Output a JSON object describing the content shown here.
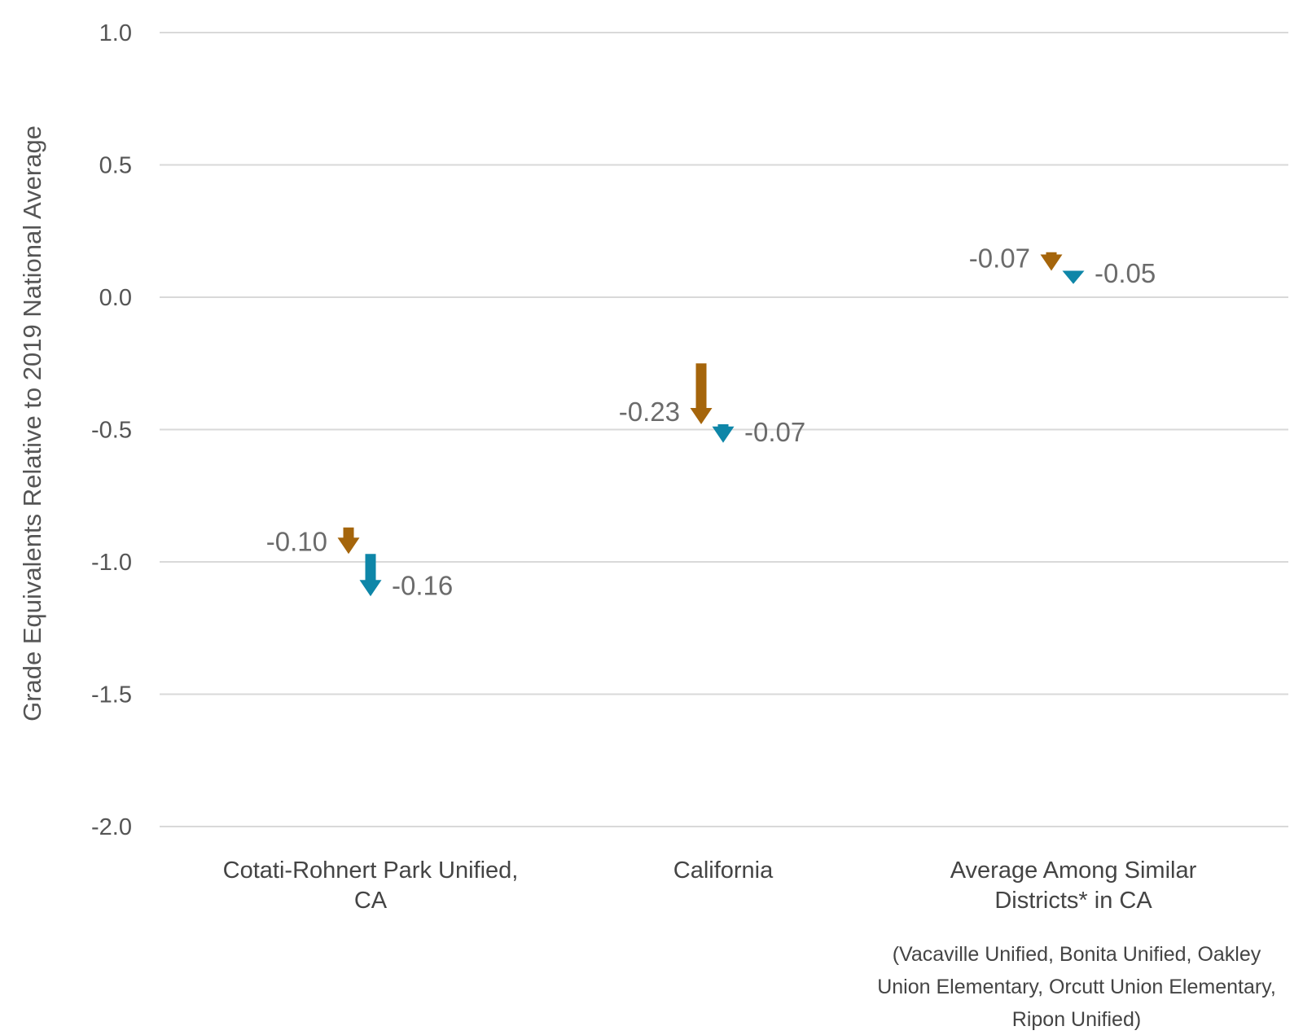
{
  "chart_data": {
    "type": "arrow",
    "ylabel": "Grade Equivalents Relative to 2019 National Average",
    "xlabel": "",
    "ylim": [
      -2.0,
      1.0
    ],
    "yticks": [
      "1.0",
      "0.5",
      "0.0",
      "-0.5",
      "-1.0",
      "-1.5",
      "-2.0"
    ],
    "ytick_values": [
      1.0,
      0.5,
      0.0,
      -0.5,
      -1.0,
      -1.5,
      -2.0
    ],
    "grid": true,
    "categories": [
      [
        "Cotati-Rohnert Park Unified,",
        "CA"
      ],
      [
        "California"
      ],
      [
        "Average Among Similar",
        "Districts* in CA"
      ]
    ],
    "series": [
      {
        "color": "#a5650b",
        "points": [
          {
            "start": -0.87,
            "end": -0.97,
            "label": "-0.10"
          },
          {
            "start": -0.25,
            "end": -0.48,
            "label": "-0.23"
          },
          {
            "start": 0.17,
            "end": 0.1,
            "label": "-0.07"
          }
        ]
      },
      {
        "color": "#0e86a8",
        "points": [
          {
            "start": -0.97,
            "end": -1.13,
            "label": "-0.16"
          },
          {
            "start": -0.48,
            "end": -0.55,
            "label": "-0.07"
          },
          {
            "start": 0.1,
            "end": 0.05,
            "label": "-0.05"
          }
        ]
      }
    ],
    "note": [
      "(Vacaville Unified, Bonita Unified, Oakley",
      "Union Elementary, Orcutt Union Elementary,",
      "Ripon Unified)"
    ]
  }
}
